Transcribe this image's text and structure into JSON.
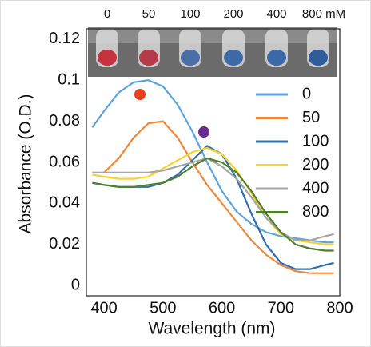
{
  "chart_data": {
    "type": "line",
    "annotations": [
      "0",
      "50",
      "100",
      "200",
      "400",
      "800 mM"
    ],
    "xlabel": "Wavelength  (nm)",
    "ylabel": "Absorbance (O.D.)",
    "x": [
      380,
      400,
      425,
      450,
      475,
      500,
      525,
      550,
      575,
      600,
      625,
      650,
      675,
      700,
      725,
      750,
      775,
      790
    ],
    "series": [
      {
        "name": "0",
        "color": "#5fa3dc",
        "values": [
          0.077,
          0.085,
          0.094,
          0.099,
          0.1,
          0.097,
          0.088,
          0.075,
          0.06,
          0.046,
          0.036,
          0.03,
          0.026,
          0.024,
          0.023,
          0.022,
          0.021,
          0.021
        ]
      },
      {
        "name": "50",
        "color": "#f0883a",
        "values": [
          null,
          0.055,
          0.062,
          0.072,
          0.079,
          0.08,
          0.072,
          0.06,
          0.049,
          0.04,
          0.031,
          0.022,
          0.015,
          0.01,
          0.007,
          0.006,
          0.006,
          0.006
        ]
      },
      {
        "name": "100",
        "color": "#2f6fb0",
        "values": [
          0.05,
          0.049,
          0.048,
          0.048,
          0.048,
          0.05,
          0.054,
          0.061,
          0.068,
          0.064,
          0.052,
          0.035,
          0.02,
          0.011,
          0.008,
          0.008,
          0.01,
          0.011
        ]
      },
      {
        "name": "200",
        "color": "#f5d230",
        "values": [
          0.054,
          0.053,
          0.052,
          0.052,
          0.053,
          0.057,
          0.061,
          0.065,
          0.067,
          0.064,
          0.056,
          0.045,
          0.033,
          0.025,
          0.022,
          0.021,
          0.02,
          0.02
        ]
      },
      {
        "name": "400",
        "color": "#a6a6a6",
        "values": [
          0.055,
          0.055,
          0.055,
          0.055,
          0.055,
          0.056,
          0.058,
          0.06,
          0.062,
          0.058,
          0.052,
          0.043,
          0.033,
          0.026,
          0.022,
          0.022,
          0.024,
          0.025
        ]
      },
      {
        "name": "800",
        "color": "#4f7f2e",
        "values": [
          0.05,
          0.049,
          0.048,
          0.048,
          0.049,
          0.05,
          0.053,
          0.058,
          0.062,
          0.06,
          0.055,
          0.046,
          0.035,
          0.026,
          0.02,
          0.018,
          0.017,
          0.017
        ]
      }
    ],
    "xlim": [
      370,
      800
    ],
    "xticks": [
      400,
      500,
      600,
      700,
      800
    ],
    "ylim": [
      -0.005,
      0.125
    ],
    "yticks": [
      0,
      0.02,
      0.04,
      0.06,
      0.08,
      0.1,
      0.12
    ]
  }
}
